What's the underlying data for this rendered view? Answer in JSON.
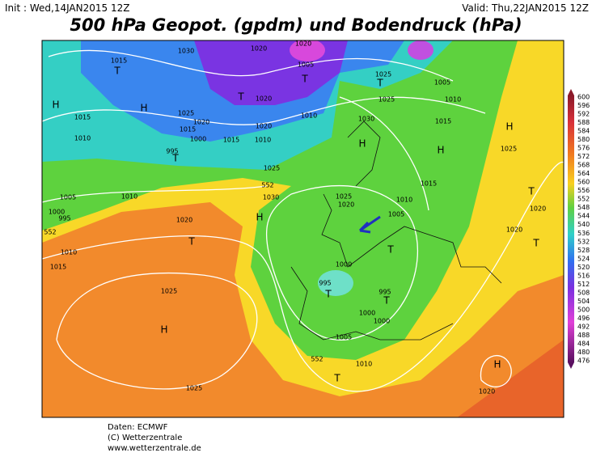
{
  "header": {
    "init": "Init : Wed,14JAN2015 12Z",
    "valid": "Valid: Thu,22JAN2015 12Z",
    "title": "500 hPa Geopot. (gpdm) und Bodendruck (hPa)"
  },
  "colorbar": {
    "labels": [
      "600",
      "596",
      "592",
      "588",
      "584",
      "580",
      "576",
      "572",
      "568",
      "564",
      "560",
      "556",
      "552",
      "548",
      "544",
      "540",
      "536",
      "532",
      "528",
      "524",
      "520",
      "516",
      "512",
      "508",
      "504",
      "500",
      "496",
      "492",
      "488",
      "484",
      "480",
      "476"
    ]
  },
  "map": {
    "labels": [
      "1015",
      "1030",
      "1020",
      "1020",
      "1005",
      "T",
      "T",
      "H",
      "H",
      "1025",
      "1015",
      "T",
      "1020",
      "1010",
      "1025",
      "T",
      "1005",
      "1010",
      "1025",
      "1015",
      "H",
      "1030",
      "H",
      "H",
      "1025",
      "1020",
      "1015",
      "1010",
      "1000",
      "1020",
      "1015",
      "1010",
      "995",
      "T",
      "1025",
      "552",
      "1030",
      "1010",
      "1005",
      "1000",
      "995",
      "552",
      "1020",
      "H",
      "T",
      "1010",
      "1015",
      "1025",
      "1020",
      "1010",
      "1005",
      "1015",
      "T",
      "1020",
      "T",
      "1020",
      "T",
      "1000",
      "995",
      "T",
      "995",
      "T",
      "1000",
      "1000",
      "1005",
      "1010",
      "552",
      "T",
      "1025",
      "H",
      "1025",
      "H",
      "1020"
    ]
  },
  "footer": {
    "lines": [
      "Daten: ECMWF",
      "(C) Wetterzentrale",
      "www.wetterzentrale.de"
    ]
  }
}
